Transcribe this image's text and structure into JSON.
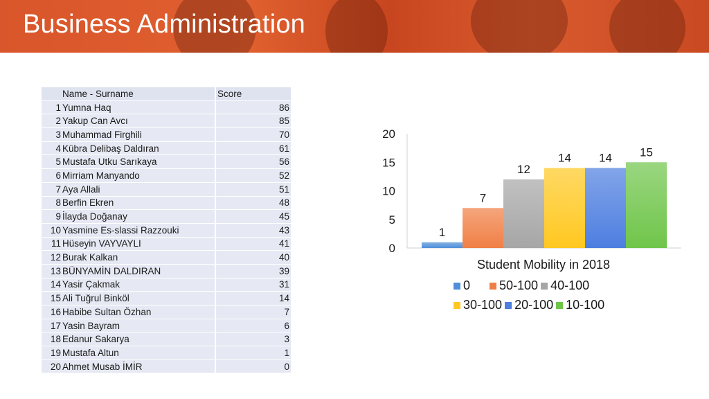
{
  "header": {
    "title": "Business Administration"
  },
  "table": {
    "headers": [
      "Name - Surname",
      "Score"
    ],
    "rows": [
      {
        "idx": "1",
        "name": "Yumna Haq",
        "score": "86"
      },
      {
        "idx": "2",
        "name": "Yakup Can Avcı",
        "score": "85"
      },
      {
        "idx": "3",
        "name": "Muhammad Firghili",
        "score": "70"
      },
      {
        "idx": "4",
        "name": "Kübra Delibaş Daldıran",
        "score": "61"
      },
      {
        "idx": "5",
        "name": "Mustafa Utku Sarıkaya",
        "score": "56"
      },
      {
        "idx": "6",
        "name": "Mirriam Manyando",
        "score": "52"
      },
      {
        "idx": "7",
        "name": "Aya Allali",
        "score": "51"
      },
      {
        "idx": "8",
        "name": "Berfin Ekren",
        "score": "48"
      },
      {
        "idx": "9",
        "name": "İlayda Doğanay",
        "score": "45"
      },
      {
        "idx": "10",
        "name": "Yasmine Es-slassi Razzouki",
        "score": "43"
      },
      {
        "idx": "11",
        "name": "Hüseyin VAYVAYLI",
        "score": "41"
      },
      {
        "idx": "12",
        "name": "Burak Kalkan",
        "score": "40"
      },
      {
        "idx": "13",
        "name": "BÜNYAMİN DALDIRAN",
        "score": "39"
      },
      {
        "idx": "14",
        "name": "Yasir Çakmak",
        "score": "31"
      },
      {
        "idx": "15",
        "name": "Ali Tuğrul Binköl",
        "score": "14"
      },
      {
        "idx": "16",
        "name": "Habibe Sultan Özhan",
        "score": "7"
      },
      {
        "idx": "17",
        "name": "Yasin Bayram",
        "score": "6"
      },
      {
        "idx": "18",
        "name": "Edanur Sakarya",
        "score": "3"
      },
      {
        "idx": "19",
        "name": "Mustafa Altun",
        "score": "1"
      },
      {
        "idx": "20",
        "name": "Ahmet Musab İMİR",
        "score": "0"
      }
    ]
  },
  "chart_data": {
    "type": "bar",
    "title": "",
    "xlabel": "Student Mobility in 2018",
    "ylabel": "",
    "ylim": [
      0,
      20
    ],
    "yticks": [
      0,
      5,
      10,
      15,
      20
    ],
    "grid": false,
    "legend_position": "bottom",
    "categories": [
      "Student Mobility in 2018"
    ],
    "series": [
      {
        "name": "0",
        "values": [
          1
        ],
        "color": "#4f8fd9"
      },
      {
        "name": "50-100",
        "values": [
          7
        ],
        "color": "#f07f45"
      },
      {
        "name": "40-100",
        "values": [
          12
        ],
        "color": "#a6a6a6"
      },
      {
        "name": "30-100",
        "values": [
          14
        ],
        "color": "#ffc821"
      },
      {
        "name": "20-100",
        "values": [
          14
        ],
        "color": "#4d7ee0"
      },
      {
        "name": "10-100",
        "values": [
          15
        ],
        "color": "#6fc54a"
      }
    ]
  }
}
